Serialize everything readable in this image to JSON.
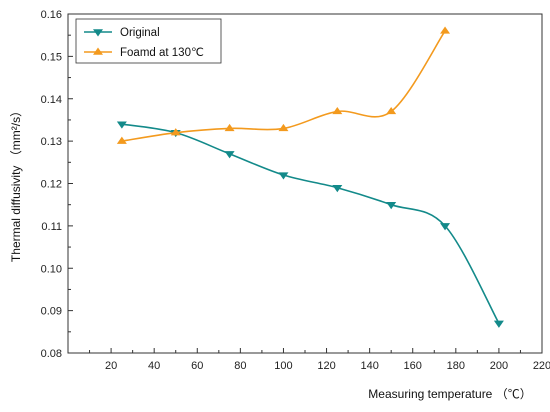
{
  "chart_data": {
    "type": "line",
    "xlabel": "Measuring temperature （℃）",
    "ylabel": "Thermal diffusivity （mm²/s）",
    "xlim": [
      0,
      220
    ],
    "ylim": [
      0.08,
      0.16
    ],
    "xticks": [
      20,
      40,
      60,
      80,
      100,
      120,
      140,
      160,
      180,
      200,
      220
    ],
    "yticks": [
      0.08,
      0.09,
      0.1,
      0.11,
      0.12,
      0.13,
      0.14,
      0.15,
      0.16
    ],
    "ytick_labels": [
      "0.08",
      "0.09",
      "0.10",
      "0.11",
      "0.12",
      "0.13",
      "0.14",
      "0.15",
      "0.16"
    ],
    "grid": false,
    "legend_position": "top-left",
    "series": [
      {
        "name": "Original",
        "color": "#138a8a",
        "marker": "triangle-down",
        "x": [
          25,
          50,
          75,
          100,
          125,
          150,
          175,
          200
        ],
        "y": [
          0.134,
          0.132,
          0.127,
          0.122,
          0.119,
          0.115,
          0.11,
          0.087
        ]
      },
      {
        "name": "Foamd at 130℃",
        "color": "#f39a1e",
        "marker": "triangle-up",
        "x": [
          25,
          50,
          75,
          100,
          125,
          150,
          175
        ],
        "y": [
          0.13,
          0.132,
          0.133,
          0.133,
          0.137,
          0.137,
          0.156
        ]
      }
    ]
  }
}
